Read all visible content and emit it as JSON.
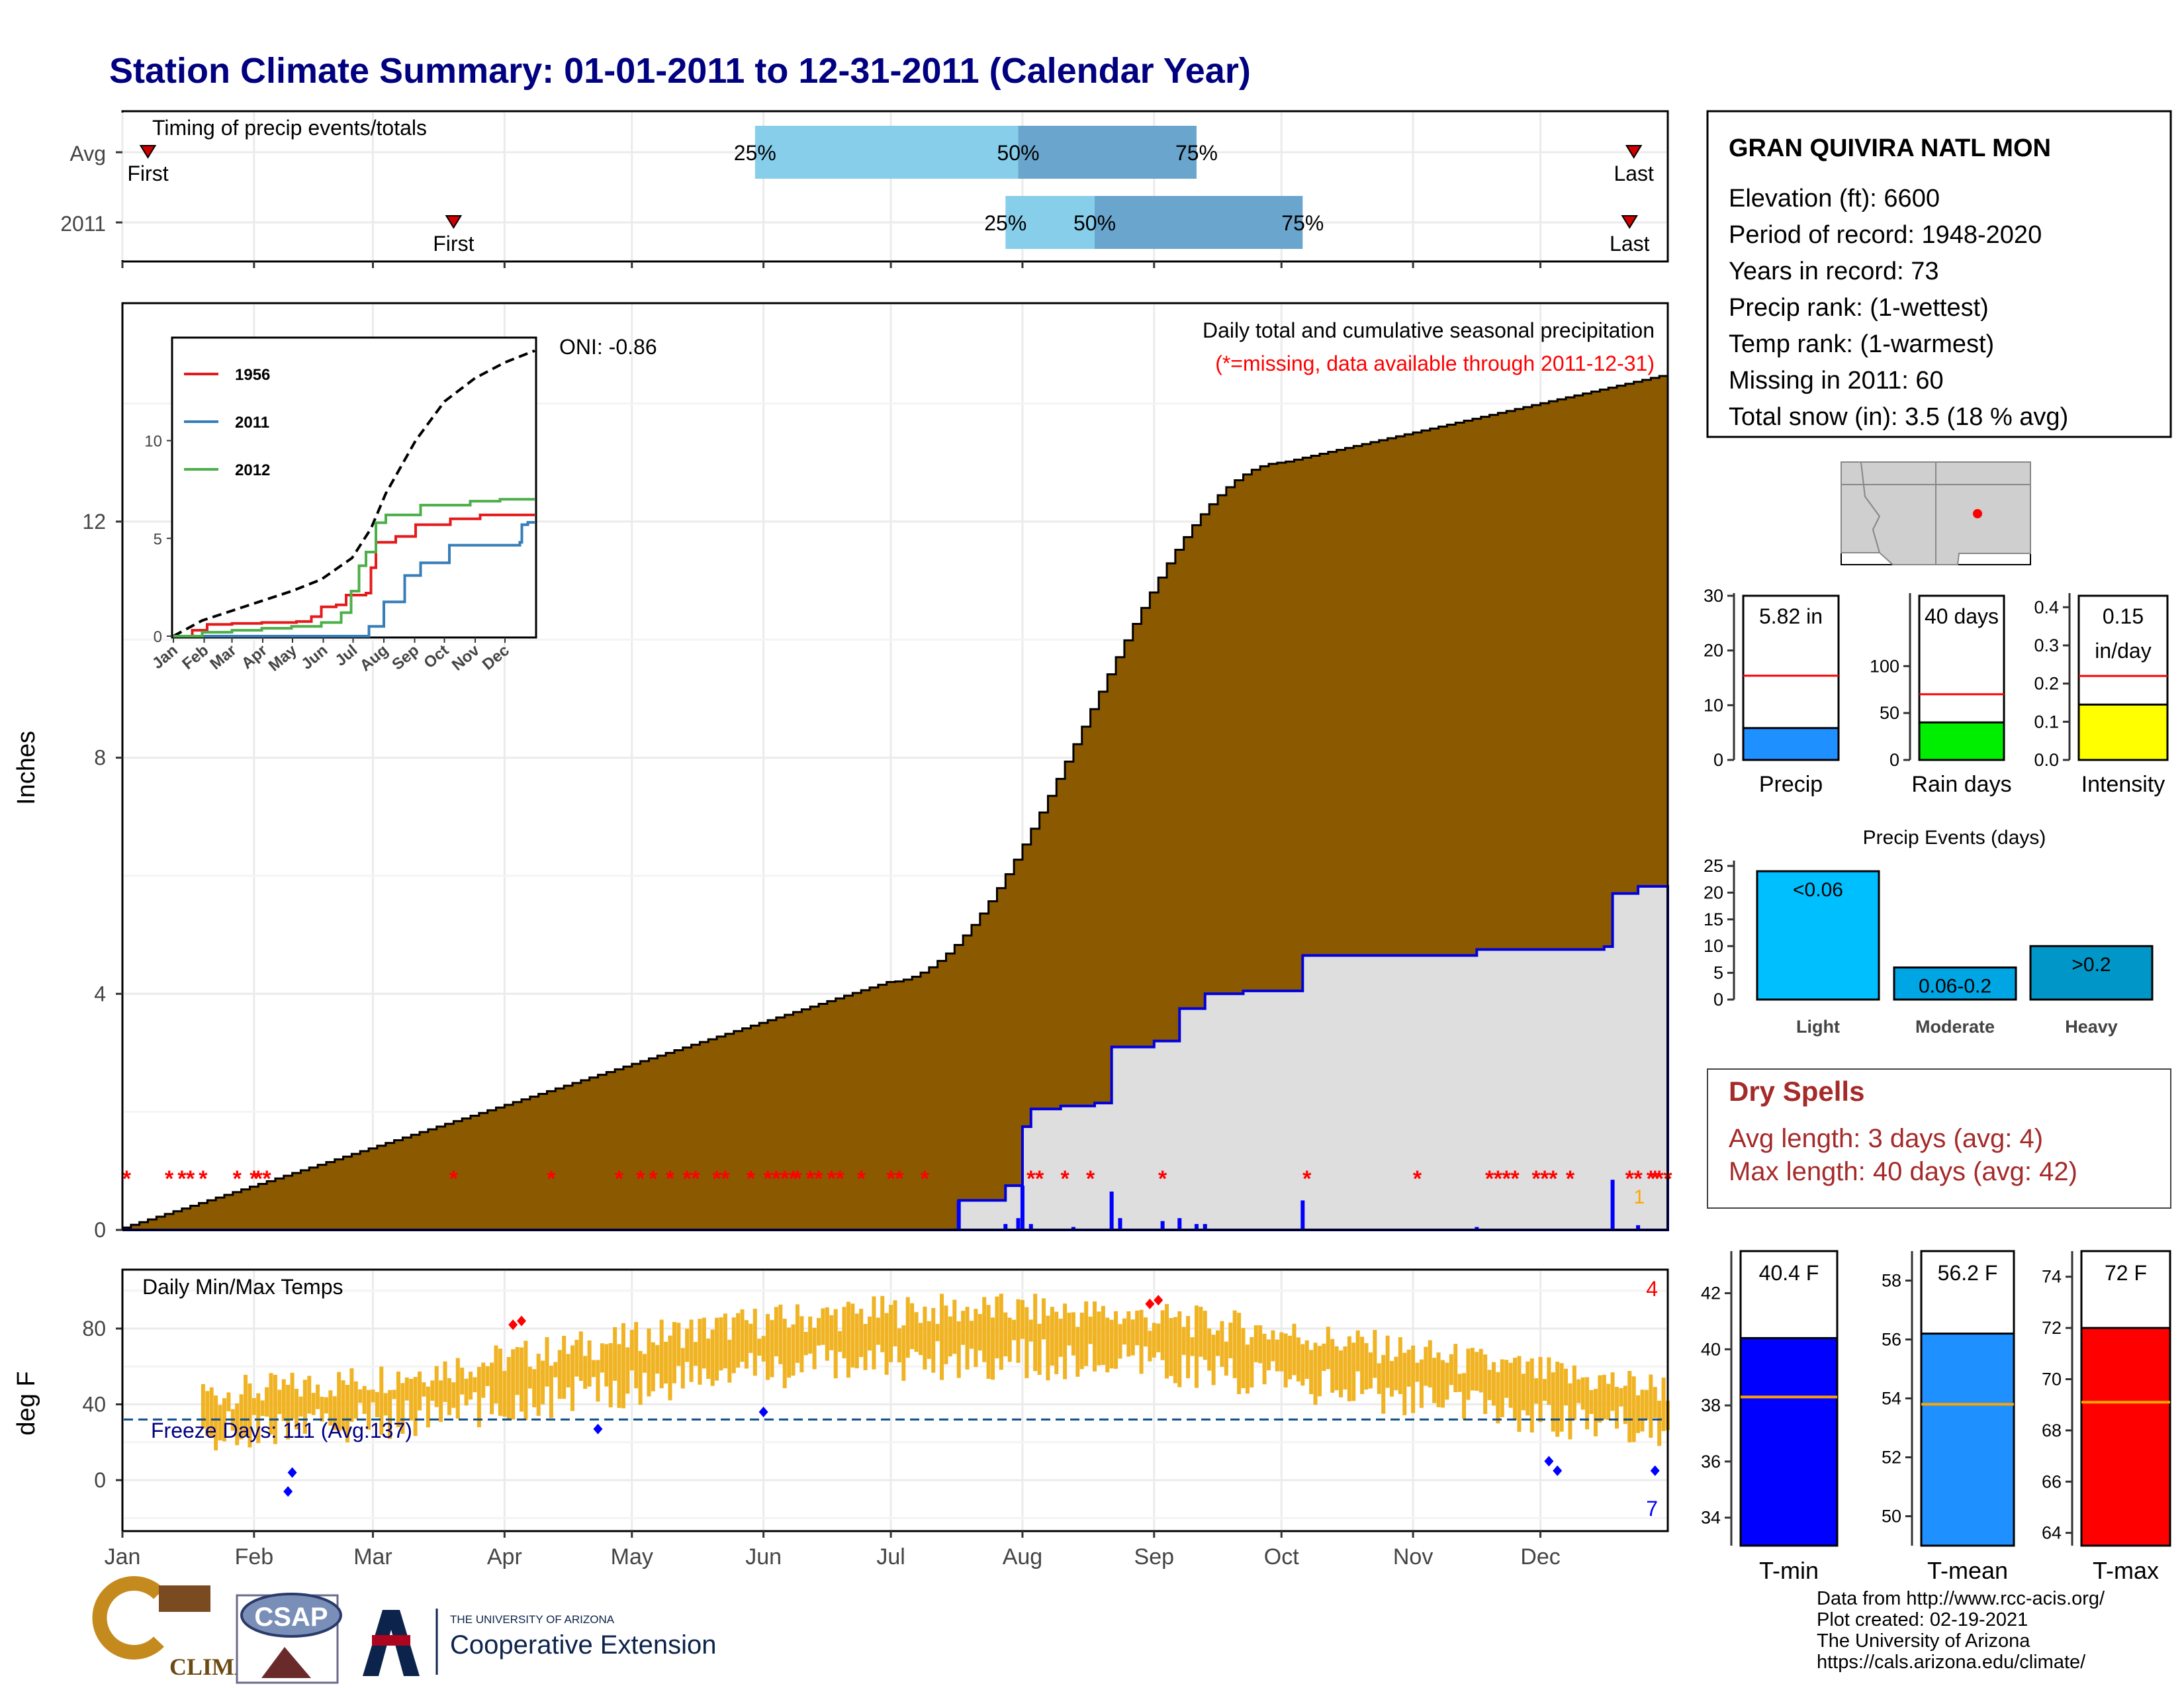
{
  "page_title": "Station Climate Summary: 01-01-2011 to 12-31-2011 (Calendar Year)",
  "timing": {
    "title": "Timing of precip events/totals",
    "rows": [
      {
        "label": "Avg",
        "first": "First",
        "last": "Last",
        "p25": "25%",
        "p50": "50%",
        "p75": "75%",
        "first_doy": 7,
        "last_doy": 357,
        "p25_doy": 150,
        "p50_doy": 212,
        "p75_doy": 254
      },
      {
        "label": "2011",
        "first": "First",
        "last": "Last",
        "p25": "25%",
        "p50": "50%",
        "p75": "75%",
        "first_doy": 79,
        "last_doy": 356,
        "p25_doy": 209,
        "p50_doy": 230,
        "p75_doy": 279
      }
    ]
  },
  "main_chart": {
    "ylabel": "Inches",
    "yticks": [
      "0",
      "4",
      "8",
      "12"
    ],
    "ytick_values": [
      0,
      4,
      8,
      12
    ],
    "title": "Daily total and cumulative seasonal precipitation",
    "missing_note": "(*=missing, data available through 2011-12-31)",
    "oni": "ONI: -0.86",
    "count_label": "1",
    "months": [
      "Jan",
      "Feb",
      "Mar",
      "Apr",
      "May",
      "Jun",
      "Jul",
      "Aug",
      "Sep",
      "Oct",
      "Nov",
      "Dec"
    ],
    "month_start_doy": [
      1,
      32,
      60,
      91,
      121,
      152,
      182,
      213,
      244,
      274,
      305,
      335
    ],
    "colors": {
      "avg_fill": "#8B5A00",
      "obs_fill": "#dedede",
      "obs_line": "#0000dd",
      "missing": "#ff0000"
    }
  },
  "inset": {
    "legend": [
      "1956",
      "2011",
      "2012"
    ],
    "legend_colors": [
      "#e41a1c",
      "#377eb8",
      "#4daf4a"
    ],
    "yticks": [
      "0",
      "5",
      "10"
    ],
    "months": [
      "Jan",
      "Feb",
      "Mar",
      "Apr",
      "May",
      "Jun",
      "Jul",
      "Aug",
      "Sep",
      "Oct",
      "Nov",
      "Dec"
    ]
  },
  "temp_chart": {
    "ylabel": "deg F",
    "title": "Daily Min/Max Temps",
    "yticks": [
      "0",
      "40",
      "80"
    ],
    "freeze": "Freeze Days: 111 (Avg:137)",
    "record_high_count": "4",
    "record_low_count": "7"
  },
  "station": {
    "name": "GRAN QUIVIRA NATL MON",
    "lines": [
      "Elevation (ft): 6600",
      "Period of record: 1948-2020",
      "Years in record: 73",
      "Precip rank:  (1-wettest)",
      "Temp rank:  (1-warmest)",
      "Missing in 2011: 60",
      "Total snow (in): 3.5 (18 % avg)"
    ]
  },
  "mini_bars": [
    {
      "label": "Precip",
      "value_text": "5.82 in",
      "value": 5.82,
      "avg": 15.4,
      "max": 30,
      "ticks": [
        "0",
        "10",
        "20",
        "30"
      ],
      "tick_values": [
        0,
        10,
        20,
        30
      ],
      "color": "#1e90ff"
    },
    {
      "label": "Rain days",
      "value_text": "40 days",
      "value": 40,
      "avg": 70,
      "max": 175,
      "ticks": [
        "0",
        "50",
        "100"
      ],
      "tick_values": [
        0,
        50,
        100
      ],
      "color": "#00ee00"
    },
    {
      "label": "Intensity",
      "value_text": "0.15",
      "value_text2": "in/day",
      "value": 0.145,
      "avg": 0.22,
      "max": 0.43,
      "ticks": [
        "0.0",
        "0.1",
        "0.2",
        "0.3",
        "0.4"
      ],
      "tick_values": [
        0,
        0.1,
        0.2,
        0.3,
        0.4
      ],
      "color": "#ffff00"
    }
  ],
  "precip_events": {
    "title": "Precip Events (days)",
    "categories": [
      "Light",
      "Moderate",
      "Heavy"
    ],
    "bar_labels": [
      "<0.06",
      "0.06-0.2",
      ">0.2"
    ],
    "values": [
      24,
      6,
      10
    ],
    "yticks": [
      "0",
      "5",
      "10",
      "15",
      "20",
      "25"
    ],
    "tick_values": [
      0,
      5,
      10,
      15,
      20,
      25
    ],
    "colors": [
      "#00bfff",
      "#00a5e3",
      "#0096c7"
    ]
  },
  "dry_spells": {
    "title": "Dry Spells",
    "lines": [
      "Avg length: 3 days (avg: 4)",
      "Max length: 40 days (avg: 42)"
    ],
    "color": "#a52a2a"
  },
  "temp_bars": [
    {
      "label": "T-min",
      "value_text": "40.4 F",
      "value": 40.4,
      "avg": 38.3,
      "min": 33,
      "max": 43.5,
      "ticks": [
        "34",
        "36",
        "38",
        "40",
        "42"
      ],
      "tick_values": [
        34,
        36,
        38,
        40,
        42
      ],
      "color": "#0000ff"
    },
    {
      "label": "T-mean",
      "value_text": "56.2 F",
      "value": 56.2,
      "avg": 53.8,
      "min": 49,
      "max": 59,
      "ticks": [
        "50",
        "52",
        "54",
        "56",
        "58"
      ],
      "tick_values": [
        50,
        52,
        54,
        56,
        58
      ],
      "color": "#1e90ff"
    },
    {
      "label": "T-max",
      "value_text": "72 F",
      "value": 72,
      "avg": 69.1,
      "min": 63.5,
      "max": 75,
      "ticks": [
        "64",
        "66",
        "68",
        "70",
        "72",
        "74"
      ],
      "tick_values": [
        64,
        66,
        68,
        70,
        72,
        74
      ],
      "color": "#ff0000"
    }
  ],
  "footer": {
    "lines": [
      "Data from http://www.rcc-acis.org/",
      "Plot created: 02-19-2021",
      "The University of Arizona",
      "https://cals.arizona.edu/climate/"
    ],
    "logo1": "CLIMAS",
    "logo2": "CSAP",
    "logo3_small": "THE UNIVERSITY OF ARIZONA",
    "logo3_big": "Cooperative Extension"
  }
}
